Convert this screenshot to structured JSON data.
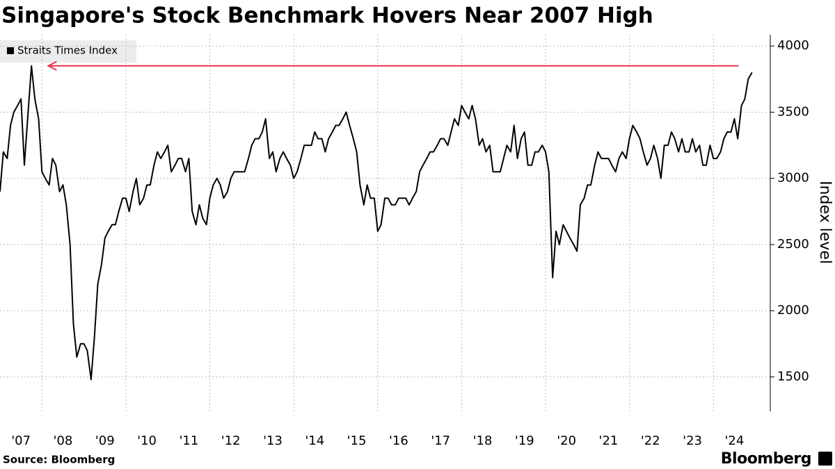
{
  "chart_data": {
    "type": "line",
    "title": "Singapore's Stock Benchmark Hovers Near 2007 High",
    "y_axis_label": "Index level",
    "source": "Source: Bloomberg",
    "brand": "Bloomberg",
    "x": [
      2007,
      2007.08,
      2007.17,
      2007.25,
      2007.33,
      2007.42,
      2007.5,
      2007.58,
      2007.67,
      2007.75,
      2007.83,
      2007.92,
      2008,
      2008.08,
      2008.17,
      2008.25,
      2008.33,
      2008.42,
      2008.5,
      2008.58,
      2008.67,
      2008.75,
      2008.83,
      2008.92,
      2009,
      2009.08,
      2009.17,
      2009.25,
      2009.33,
      2009.42,
      2009.5,
      2009.58,
      2009.67,
      2009.75,
      2009.83,
      2009.92,
      2010,
      2010.08,
      2010.17,
      2010.25,
      2010.33,
      2010.42,
      2010.5,
      2010.58,
      2010.67,
      2010.75,
      2010.83,
      2010.92,
      2011,
      2011.08,
      2011.17,
      2011.25,
      2011.33,
      2011.42,
      2011.5,
      2011.58,
      2011.67,
      2011.75,
      2011.83,
      2011.92,
      2012,
      2012.08,
      2012.17,
      2012.25,
      2012.33,
      2012.42,
      2012.5,
      2012.58,
      2012.67,
      2012.75,
      2012.83,
      2012.92,
      2013,
      2013.08,
      2013.17,
      2013.25,
      2013.33,
      2013.42,
      2013.5,
      2013.58,
      2013.67,
      2013.75,
      2013.83,
      2013.92,
      2014,
      2014.08,
      2014.17,
      2014.25,
      2014.33,
      2014.42,
      2014.5,
      2014.58,
      2014.67,
      2014.75,
      2014.83,
      2014.92,
      2015,
      2015.08,
      2015.17,
      2015.25,
      2015.33,
      2015.42,
      2015.5,
      2015.58,
      2015.67,
      2015.75,
      2015.83,
      2015.92,
      2016,
      2016.08,
      2016.17,
      2016.25,
      2016.33,
      2016.42,
      2016.5,
      2016.58,
      2016.67,
      2016.75,
      2016.83,
      2016.92,
      2017,
      2017.08,
      2017.17,
      2017.25,
      2017.33,
      2017.42,
      2017.5,
      2017.58,
      2017.67,
      2017.75,
      2017.83,
      2017.92,
      2018,
      2018.08,
      2018.17,
      2018.25,
      2018.33,
      2018.42,
      2018.5,
      2018.58,
      2018.67,
      2018.75,
      2018.83,
      2018.92,
      2019,
      2019.08,
      2019.17,
      2019.25,
      2019.33,
      2019.42,
      2019.5,
      2019.58,
      2019.67,
      2019.75,
      2019.83,
      2019.92,
      2020,
      2020.08,
      2020.17,
      2020.25,
      2020.33,
      2020.42,
      2020.5,
      2020.58,
      2020.67,
      2020.75,
      2020.83,
      2020.92,
      2021,
      2021.08,
      2021.17,
      2021.25,
      2021.33,
      2021.42,
      2021.5,
      2021.58,
      2021.67,
      2021.75,
      2021.83,
      2021.92,
      2022,
      2022.08,
      2022.17,
      2022.25,
      2022.33,
      2022.42,
      2022.5,
      2022.58,
      2022.67,
      2022.75,
      2022.83,
      2022.92,
      2023,
      2023.08,
      2023.17,
      2023.25,
      2023.33,
      2023.42,
      2023.5,
      2023.58,
      2023.67,
      2023.75,
      2023.83,
      2023.92,
      2024,
      2024.08,
      2024.17,
      2024.25,
      2024.33,
      2024.42,
      2024.5,
      2024.58,
      2024.67,
      2024.75,
      2024.83,
      2024.92
    ],
    "series": [
      {
        "name": "Straits Times Index",
        "color": "#000000",
        "values": [
          2900,
          3200,
          3150,
          3400,
          3500,
          3550,
          3600,
          3100,
          3500,
          3850,
          3600,
          3450,
          3050,
          3000,
          2950,
          3150,
          3100,
          2900,
          2950,
          2800,
          2500,
          1900,
          1650,
          1750,
          1750,
          1700,
          1480,
          1800,
          2200,
          2350,
          2550,
          2600,
          2650,
          2650,
          2750,
          2850,
          2850,
          2750,
          2900,
          3000,
          2800,
          2850,
          2950,
          2950,
          3100,
          3200,
          3150,
          3200,
          3250,
          3050,
          3100,
          3150,
          3150,
          3050,
          3150,
          2750,
          2650,
          2800,
          2700,
          2650,
          2850,
          2950,
          3000,
          2950,
          2850,
          2900,
          3000,
          3050,
          3050,
          3050,
          3050,
          3150,
          3250,
          3300,
          3300,
          3350,
          3450,
          3150,
          3200,
          3050,
          3150,
          3200,
          3150,
          3100,
          3000,
          3050,
          3150,
          3250,
          3250,
          3250,
          3350,
          3300,
          3300,
          3200,
          3300,
          3350,
          3400,
          3400,
          3450,
          3500,
          3400,
          3300,
          3200,
          2950,
          2800,
          2950,
          2850,
          2850,
          2600,
          2650,
          2850,
          2850,
          2800,
          2800,
          2850,
          2850,
          2850,
          2800,
          2850,
          2900,
          3050,
          3100,
          3150,
          3200,
          3200,
          3250,
          3300,
          3300,
          3250,
          3350,
          3450,
          3400,
          3550,
          3500,
          3450,
          3550,
          3450,
          3250,
          3300,
          3200,
          3250,
          3050,
          3050,
          3050,
          3150,
          3250,
          3200,
          3400,
          3150,
          3300,
          3350,
          3100,
          3100,
          3200,
          3200,
          3250,
          3200,
          3050,
          2250,
          2600,
          2500,
          2650,
          2600,
          2550,
          2500,
          2450,
          2800,
          2850,
          2950,
          2950,
          3100,
          3200,
          3150,
          3150,
          3150,
          3100,
          3050,
          3150,
          3200,
          3150,
          3300,
          3400,
          3350,
          3300,
          3200,
          3100,
          3150,
          3250,
          3150,
          3000,
          3250,
          3250,
          3350,
          3300,
          3200,
          3300,
          3200,
          3200,
          3300,
          3200,
          3250,
          3100,
          3100,
          3250,
          3150,
          3150,
          3200,
          3300,
          3350,
          3350,
          3450,
          3300,
          3550,
          3600,
          3750,
          3800
        ]
      }
    ],
    "xlim": [
      2007,
      2025.24
    ],
    "xticks": [
      {
        "value": 2007,
        "label": "'07"
      },
      {
        "value": 2008,
        "label": "'08"
      },
      {
        "value": 2009,
        "label": "'09"
      },
      {
        "value": 2010,
        "label": "'10"
      },
      {
        "value": 2011,
        "label": "'11"
      },
      {
        "value": 2012,
        "label": "'12"
      },
      {
        "value": 2013,
        "label": "'13"
      },
      {
        "value": 2014,
        "label": "'14"
      },
      {
        "value": 2015,
        "label": "'15"
      },
      {
        "value": 2016,
        "label": "'16"
      },
      {
        "value": 2017,
        "label": "'17"
      },
      {
        "value": 2018,
        "label": "'18"
      },
      {
        "value": 2019,
        "label": "'19"
      },
      {
        "value": 2020,
        "label": "'20"
      },
      {
        "value": 2021,
        "label": "'21"
      },
      {
        "value": 2022,
        "label": "'22"
      },
      {
        "value": 2023,
        "label": "'23"
      },
      {
        "value": 2024,
        "label": "'24"
      }
    ],
    "ylim": [
      1240,
      4085
    ],
    "yticks": [
      1500,
      2000,
      2500,
      3000,
      3500,
      4000
    ],
    "grid": true,
    "arrow": {
      "y": 3850,
      "x": [
        2008.15,
        2024.6
      ],
      "color": "#e8334a"
    }
  }
}
